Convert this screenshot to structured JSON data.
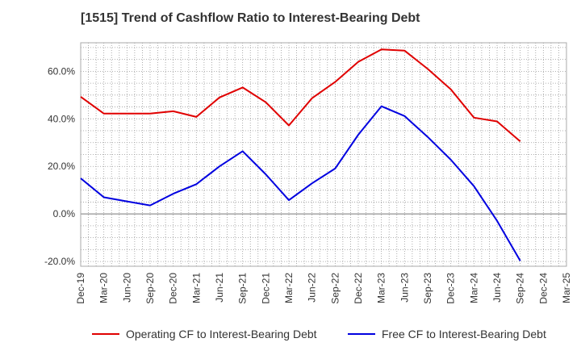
{
  "chart_data": {
    "type": "line",
    "title": "[1515]  Trend of Cashflow Ratio to Interest-Bearing Debt",
    "xlabel": "",
    "ylabel": "",
    "categories": [
      "Dec-19",
      "Mar-20",
      "Jun-20",
      "Sep-20",
      "Dec-20",
      "Mar-21",
      "Jun-21",
      "Sep-21",
      "Dec-21",
      "Mar-22",
      "Jun-22",
      "Sep-22",
      "Dec-22",
      "Mar-23",
      "Jun-23",
      "Sep-23",
      "Dec-23",
      "Mar-24",
      "Jun-24",
      "Sep-24",
      "Dec-24",
      "Mar-25"
    ],
    "ylim": [
      -22,
      72
    ],
    "yticks": [
      -20,
      0,
      20,
      40,
      60
    ],
    "ytick_labels": [
      "-20.0%",
      "0.0%",
      "20.0%",
      "40.0%",
      "60.0%"
    ],
    "grid": true,
    "legend_position": "bottom",
    "series": [
      {
        "name": "Operating CF to Interest-Bearing Debt",
        "color": "#e00000",
        "values": [
          49.3,
          42.2,
          42.2,
          42.2,
          43.2,
          40.8,
          49.0,
          53.2,
          47.0,
          37.2,
          48.7,
          55.5,
          64.0,
          69.2,
          68.7,
          61.0,
          52.4,
          40.5,
          38.9,
          30.5,
          null,
          null
        ]
      },
      {
        "name": "Free CF to Interest-Bearing Debt",
        "color": "#0000e0",
        "values": [
          15.0,
          7.0,
          5.3,
          3.6,
          8.5,
          12.5,
          20.0,
          26.4,
          16.7,
          5.8,
          12.9,
          19.1,
          33.3,
          45.3,
          41.2,
          32.4,
          22.8,
          11.7,
          -2.9,
          -19.7,
          null,
          null
        ]
      }
    ]
  }
}
